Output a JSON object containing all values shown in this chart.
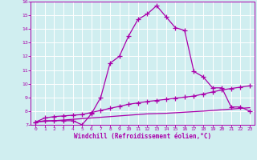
{
  "xlabel": "Windchill (Refroidissement éolien,°C)",
  "bg_color": "#d0eef0",
  "grid_color": "#ffffff",
  "line_color": "#aa00aa",
  "xlim": [
    -0.5,
    23.5
  ],
  "ylim": [
    7,
    16
  ],
  "xticks": [
    0,
    1,
    2,
    3,
    4,
    5,
    6,
    7,
    8,
    9,
    10,
    11,
    12,
    13,
    14,
    15,
    16,
    17,
    18,
    19,
    20,
    21,
    22,
    23
  ],
  "yticks": [
    7,
    8,
    9,
    10,
    11,
    12,
    13,
    14,
    15,
    16
  ],
  "line1_x": [
    0,
    1,
    2,
    3,
    4,
    5,
    6,
    7,
    8,
    9,
    10,
    11,
    12,
    13,
    14,
    15,
    16,
    17,
    18,
    19,
    20,
    21,
    22,
    23
  ],
  "line1_y": [
    7.2,
    7.3,
    7.3,
    7.3,
    7.3,
    7.0,
    7.8,
    9.0,
    11.5,
    12.0,
    13.5,
    14.7,
    15.1,
    15.7,
    14.9,
    14.1,
    13.9,
    10.9,
    10.5,
    9.7,
    9.7,
    8.3,
    8.3,
    8.0
  ],
  "line2_x": [
    0,
    1,
    2,
    3,
    4,
    5,
    6,
    7,
    8,
    9,
    10,
    11,
    12,
    13,
    14,
    15,
    16,
    17,
    18,
    19,
    20,
    21,
    22,
    23
  ],
  "line2_y": [
    7.2,
    7.5,
    7.6,
    7.65,
    7.7,
    7.75,
    7.9,
    8.05,
    8.2,
    8.35,
    8.5,
    8.6,
    8.7,
    8.78,
    8.86,
    8.94,
    9.02,
    9.1,
    9.25,
    9.4,
    9.55,
    9.65,
    9.75,
    9.85
  ],
  "line3_x": [
    0,
    1,
    2,
    3,
    4,
    5,
    6,
    7,
    8,
    9,
    10,
    11,
    12,
    13,
    14,
    15,
    16,
    17,
    18,
    19,
    20,
    21,
    22,
    23
  ],
  "line3_y": [
    7.2,
    7.25,
    7.3,
    7.35,
    7.4,
    7.45,
    7.5,
    7.55,
    7.6,
    7.65,
    7.7,
    7.75,
    7.8,
    7.82,
    7.84,
    7.88,
    7.92,
    7.96,
    8.0,
    8.05,
    8.1,
    8.15,
    8.2,
    8.25
  ]
}
